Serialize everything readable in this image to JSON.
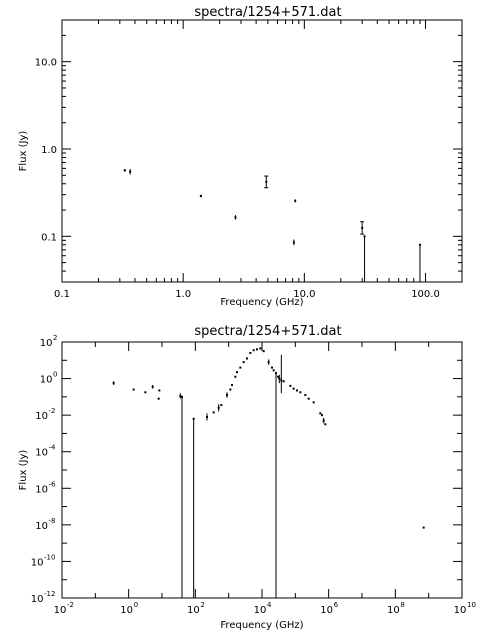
{
  "chart_data": [
    {
      "type": "scatter",
      "title": "spectra/1254+571.dat",
      "xlabel": "Frequency (GHz)",
      "ylabel": "Flux (Jy)",
      "xscale": "log",
      "yscale": "log",
      "xlim": [
        0.1,
        200
      ],
      "ylim": [
        0.03,
        30
      ],
      "x_ticks": [
        {
          "value": 0.1,
          "label": "0.1"
        },
        {
          "value": 1,
          "label": "1.0"
        },
        {
          "value": 10,
          "label": "10.0"
        },
        {
          "value": 100,
          "label": "100.0"
        }
      ],
      "y_ticks": [
        {
          "value": 0.1,
          "label": "0.1"
        },
        {
          "value": 1,
          "label": "1.0"
        },
        {
          "value": 10,
          "label": "10.0"
        }
      ],
      "grid": false,
      "points": [
        {
          "x": 0.33,
          "y": 0.57,
          "ylo": 0.55,
          "yhi": 0.59
        },
        {
          "x": 0.365,
          "y": 0.55,
          "ylo": 0.51,
          "yhi": 0.59
        },
        {
          "x": 1.4,
          "y": 0.29,
          "ylo": 0.28,
          "yhi": 0.3
        },
        {
          "x": 2.7,
          "y": 0.165,
          "ylo": 0.155,
          "yhi": 0.175
        },
        {
          "x": 4.85,
          "y": 0.42,
          "ylo": 0.36,
          "yhi": 0.49
        },
        {
          "x": 8.2,
          "y": 0.085,
          "ylo": 0.079,
          "yhi": 0.092
        },
        {
          "x": 8.4,
          "y": 0.255,
          "ylo": 0.245,
          "yhi": 0.265
        },
        {
          "x": 30,
          "y": 0.125,
          "ylo": 0.106,
          "yhi": 0.147
        },
        {
          "x": 31.4,
          "y": 0.1,
          "ylo": 0.0001,
          "yhi": 0.1
        },
        {
          "x": 90,
          "y": 0.08,
          "ylo": 0.0001,
          "yhi": 0.08
        }
      ]
    },
    {
      "type": "scatter",
      "title": "spectra/1254+571.dat",
      "xlabel": "Frequency (GHz)",
      "ylabel": "Flux (Jy)",
      "xscale": "log",
      "yscale": "log",
      "xlim_exp": [
        -2,
        10
      ],
      "ylim_exp": [
        -12,
        2
      ],
      "x_tick_exponents": [
        -2,
        0,
        2,
        4,
        6,
        8,
        10
      ],
      "y_tick_exponents": [
        -12,
        -10,
        -8,
        -6,
        -4,
        -2,
        0,
        2
      ],
      "tick_base": "10",
      "grid": false,
      "points_log": [
        {
          "lx": -0.45,
          "ly": -0.25,
          "lylo": -0.35,
          "lyhi": -0.15
        },
        {
          "lx": 0.15,
          "ly": -0.6
        },
        {
          "lx": 0.5,
          "ly": -0.75
        },
        {
          "lx": 0.72,
          "ly": -0.45,
          "lylo": -0.55,
          "lyhi": -0.35
        },
        {
          "lx": 0.9,
          "ly": -1.1
        },
        {
          "lx": 0.92,
          "ly": -0.65
        },
        {
          "lx": 1.55,
          "ly": -0.95,
          "lylo": -1.1,
          "lyhi": -0.8
        },
        {
          "lx": 1.6,
          "ly": -1.0,
          "lylo": -12,
          "lyhi": -1.0
        },
        {
          "lx": 1.95,
          "ly": -2.2,
          "lylo": -12,
          "lyhi": -2.2
        },
        {
          "lx": 2.35,
          "ly": -2.1,
          "lylo": -2.3,
          "lyhi": -1.9
        },
        {
          "lx": 2.55,
          "ly": -1.85
        },
        {
          "lx": 2.7,
          "ly": -1.6,
          "lylo": -1.8,
          "lyhi": -1.4
        },
        {
          "lx": 2.78,
          "ly": -1.45
        },
        {
          "lx": 2.95,
          "ly": -0.9,
          "lylo": -1.05,
          "lyhi": -0.75
        },
        {
          "lx": 3.05,
          "ly": -0.6
        },
        {
          "lx": 3.1,
          "ly": -0.35
        },
        {
          "lx": 3.2,
          "ly": 0.1
        },
        {
          "lx": 3.25,
          "ly": 0.35
        },
        {
          "lx": 3.35,
          "ly": 0.6
        },
        {
          "lx": 3.45,
          "ly": 0.9
        },
        {
          "lx": 3.55,
          "ly": 1.1
        },
        {
          "lx": 3.65,
          "ly": 1.4
        },
        {
          "lx": 3.75,
          "ly": 1.55
        },
        {
          "lx": 3.85,
          "ly": 1.6
        },
        {
          "lx": 3.95,
          "ly": 1.65
        },
        {
          "lx": 4.05,
          "ly": 1.5
        },
        {
          "lx": 4.2,
          "ly": 0.9,
          "lylo": 0.75,
          "lyhi": 1.05
        },
        {
          "lx": 4.3,
          "ly": 0.6
        },
        {
          "lx": 4.35,
          "ly": 0.45
        },
        {
          "lx": 4.42,
          "ly": 0.3,
          "lylo": -12,
          "lyhi": 0.3
        },
        {
          "lx": 4.48,
          "ly": 0.1
        },
        {
          "lx": 4.52,
          "ly": 0.0,
          "lylo": -0.25,
          "lyhi": 0.2
        },
        {
          "lx": 4.58,
          "ly": -0.1,
          "lylo": -0.8,
          "lyhi": 1.3
        },
        {
          "lx": 4.65,
          "ly": -0.15
        },
        {
          "lx": 4.85,
          "ly": -0.4
        },
        {
          "lx": 4.95,
          "ly": -0.55
        },
        {
          "lx": 5.05,
          "ly": -0.65
        },
        {
          "lx": 5.15,
          "ly": -0.75
        },
        {
          "lx": 5.3,
          "ly": -0.9
        },
        {
          "lx": 5.4,
          "ly": -1.1
        },
        {
          "lx": 5.55,
          "ly": -1.3
        },
        {
          "lx": 5.75,
          "ly": -1.9
        },
        {
          "lx": 5.8,
          "ly": -2.0
        },
        {
          "lx": 5.85,
          "ly": -2.3,
          "lylo": -2.45,
          "lyhi": -2.15
        },
        {
          "lx": 5.9,
          "ly": -2.5
        },
        {
          "lx": 8.85,
          "ly": -8.15
        }
      ]
    }
  ]
}
